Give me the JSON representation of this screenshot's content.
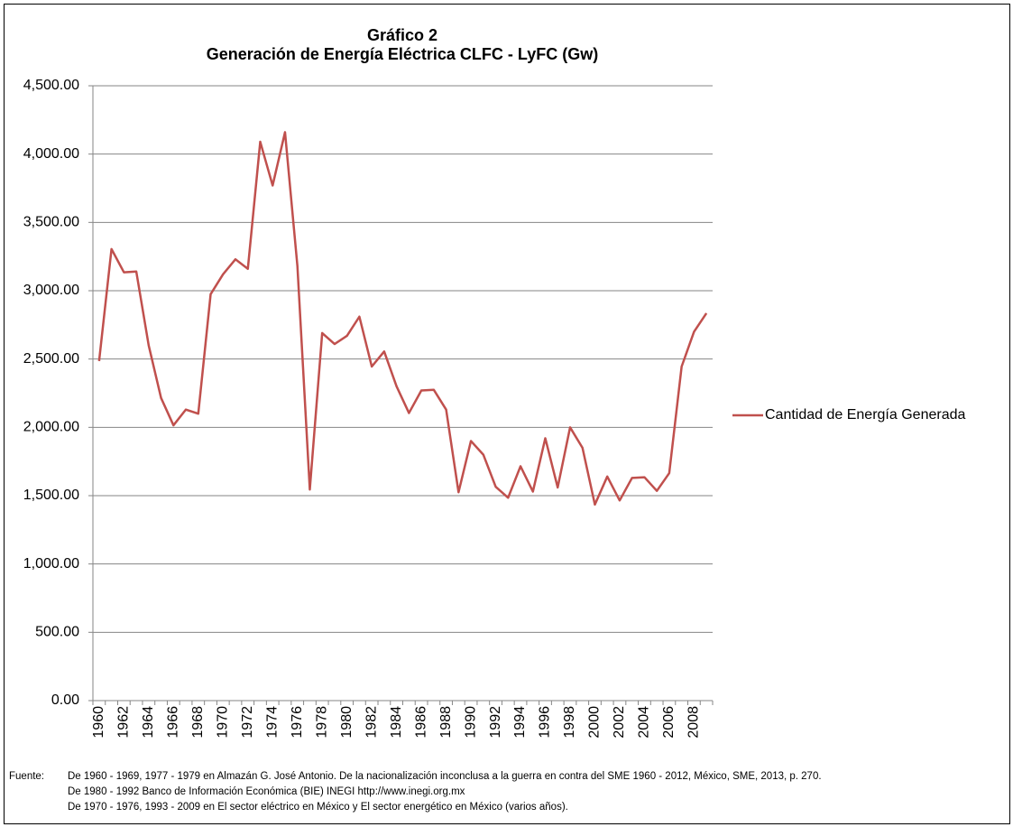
{
  "chart_data": {
    "type": "line",
    "title": "Gráfico 2",
    "subtitle": "Generación de Energía Eléctrica CLFC - LyFC (Gw)",
    "categories": [
      "1960",
      null,
      "1962",
      null,
      "1964",
      null,
      "1966",
      null,
      "1968",
      null,
      "1970",
      null,
      "1972",
      null,
      "1974",
      null,
      "1976",
      null,
      "1978",
      null,
      "1980",
      null,
      "1982",
      null,
      "1984",
      null,
      "1986",
      null,
      "1988",
      null,
      "1990",
      null,
      "1992",
      null,
      "1994",
      null,
      "1996",
      null,
      "1998",
      null,
      "2000",
      null,
      "2002",
      null,
      "2004",
      null,
      "2006",
      null,
      "2008",
      null
    ],
    "series": [
      {
        "name": "Cantidad de Energía Generada",
        "color": "#c0504d",
        "values": [
          2485,
          3305,
          3135,
          3140,
          2600,
          2215,
          2015,
          2130,
          2100,
          2975,
          3120,
          3230,
          3160,
          4090,
          3770,
          4160,
          3180,
          1545,
          2690,
          2610,
          2670,
          2810,
          2445,
          2555,
          2300,
          2105,
          2270,
          2275,
          2130,
          1525,
          1900,
          1800,
          1565,
          1485,
          1715,
          1530,
          1920,
          1560,
          2000,
          1850,
          1435,
          1640,
          1465,
          1630,
          1635,
          1535,
          1665,
          2445,
          2700,
          2835
        ]
      }
    ],
    "ylim": [
      0,
      4500
    ],
    "yticks": [
      {
        "value": 0,
        "label": "0.00"
      },
      {
        "value": 500,
        "label": "500.00"
      },
      {
        "value": 1000,
        "label": "1,000.00"
      },
      {
        "value": 1500,
        "label": "1,500.00"
      },
      {
        "value": 2000,
        "label": "2,000.00"
      },
      {
        "value": 2500,
        "label": "2,500.00"
      },
      {
        "value": 3000,
        "label": "3,000.00"
      },
      {
        "value": 3500,
        "label": "3,500.00"
      },
      {
        "value": 4000,
        "label": "4,000.00"
      },
      {
        "value": 4500,
        "label": "4,500.00"
      }
    ],
    "grid": true,
    "legend": "right",
    "source_label": "Fuente:",
    "source_lines": [
      "De 1960 - 1969, 1977 - 1979 en Almazán G. José Antonio. De la nacionalización inconclusa a la guerra en contra del SME 1960 - 2012, México, SME, 2013, p. 270.",
      "De 1980 - 1992 Banco de Información Económica (BIE) INEGI http://www.inegi.org.mx",
      "De 1970 - 1976, 1993 - 2009 en El sector eléctrico en México y El sector energético en México (varios años)."
    ]
  }
}
